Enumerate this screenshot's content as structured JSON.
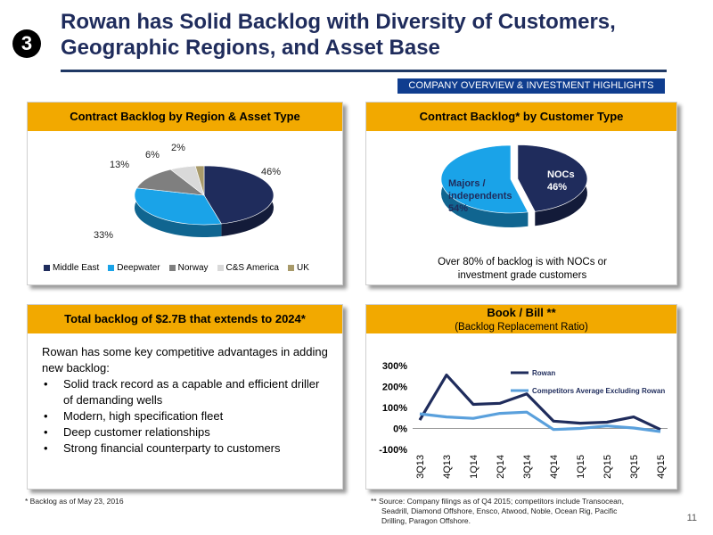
{
  "slide_number": "3",
  "title_line1": "Rowan has Solid Backlog with Diversity of Customers,",
  "title_line2": "Geographic Regions, and Asset Base",
  "section_tag": "COMPANY OVERVIEW & INVESTMENT HIGHLIGHTS",
  "panel1": {
    "header": "Contract Backlog by Region & Asset Type",
    "legend": [
      "Middle East",
      "Deepwater",
      "Norway",
      "C&S America",
      "UK"
    ]
  },
  "panel2": {
    "header": "Contract Backlog* by Customer Type",
    "nocs_label": "NOCs",
    "nocs_value": "46%",
    "majors_label1": "Majors /",
    "majors_label2": "independents",
    "majors_value": "54%",
    "note_line1": "Over 80% of backlog is with NOCs or",
    "note_line2": "investment grade customers"
  },
  "panel3": {
    "header": "Total backlog of $2.7B that extends to 2024*",
    "intro": "Rowan has some key competitive advantages in adding new backlog:",
    "bullets": [
      "Solid track record as a capable and efficient driller of demanding wells",
      "Modern, high specification fleet",
      "Deep customer relationships",
      "Strong financial counterparty to customers"
    ]
  },
  "panel4": {
    "header": "Book / Bill **",
    "subheader": "(Backlog Replacement Ratio)"
  },
  "footnote_left": "* Backlog as of May 23, 2016",
  "footnote_right_1": "** Source: Company filings as of Q4 2015; competitors include Transocean,",
  "footnote_right_2": "Seadrill, Diamond Offshore, Ensco, Atwood, Noble, Ocean Rig, Pacific",
  "footnote_right_3": "Drilling, Paragon Offshore.",
  "page_number": "11",
  "colors": {
    "navy": "#1f2c5c",
    "light_blue": "#1aa3e8",
    "gray": "#7f7f7f",
    "light_gray": "#d9d9d9",
    "tan": "#a89a6a",
    "gold": "#f2a900"
  },
  "chart_data": [
    {
      "type": "pie",
      "labels": [
        "Middle East",
        "Deepwater",
        "Norway",
        "C&S America",
        "UK"
      ],
      "values": [
        46,
        33,
        13,
        6,
        2
      ],
      "value_labels": [
        "46%",
        "33%",
        "13%",
        "6%",
        "2%"
      ],
      "colors": [
        "#1f2c5c",
        "#1aa3e8",
        "#7f7f7f",
        "#d9d9d9",
        "#a89a6a"
      ],
      "legend_position": "bottom"
    },
    {
      "type": "pie",
      "labels": [
        "NOCs",
        "Majors / independents"
      ],
      "values": [
        46,
        54
      ],
      "colors": [
        "#1f2c5c",
        "#1aa3e8"
      ]
    },
    {
      "type": "line",
      "categories": [
        "3Q13",
        "4Q13",
        "1Q14",
        "2Q14",
        "3Q14",
        "4Q14",
        "1Q15",
        "2Q15",
        "3Q15",
        "4Q15"
      ],
      "series": [
        {
          "name": "Rowan",
          "color": "#1f2c5c",
          "values": [
            40,
            255,
            115,
            120,
            165,
            35,
            25,
            30,
            55,
            -5
          ]
        },
        {
          "name": "Competitors Average Excluding Rowan",
          "color": "#5aa0dc",
          "values": [
            70,
            55,
            48,
            72,
            78,
            -5,
            0,
            12,
            2,
            -15
          ]
        }
      ],
      "yticks": [
        "300%",
        "200%",
        "100%",
        "0%",
        "-100%"
      ],
      "ylim": [
        -100,
        300
      ],
      "legend_position": "top-right"
    }
  ]
}
